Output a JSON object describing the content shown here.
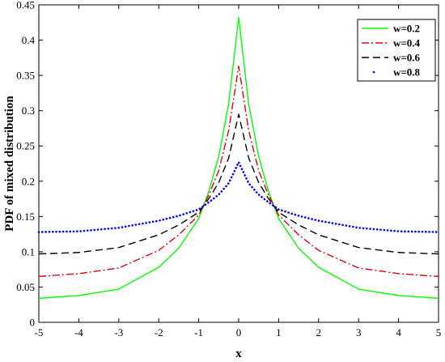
{
  "chart_data": {
    "type": "line",
    "xlabel": "x",
    "ylabel": "PDF of mixed distribution",
    "xlim": [
      -5,
      5
    ],
    "ylim": [
      0,
      0.45
    ],
    "x_ticks": [
      -5,
      -4,
      -3,
      -2,
      -1,
      0,
      1,
      2,
      3,
      4,
      5
    ],
    "y_ticks": [
      0,
      0.05,
      0.1,
      0.15,
      0.2,
      0.25,
      0.3,
      0.35,
      0.4,
      0.45
    ],
    "x_tick_labels": [
      "-5",
      "-4",
      "-3",
      "-2",
      "-1",
      "0",
      "1",
      "2",
      "3",
      "4",
      "5"
    ],
    "y_tick_labels": [
      "0",
      "0.05",
      "0.1",
      "0.15",
      "0.2",
      "0.25",
      "0.3",
      "0.35",
      "0.4",
      "0.45"
    ],
    "grid": false,
    "legend_position": "top-right",
    "x": [
      -5,
      -4,
      -3,
      -2,
      -1.5,
      -1,
      -0.75,
      -0.5,
      -0.25,
      0,
      0.25,
      0.5,
      0.75,
      1,
      1.5,
      2,
      3,
      4,
      5
    ],
    "series": [
      {
        "name": "w=0.2",
        "color": "#00ff00",
        "style": "solid",
        "values": [
          0.034,
          0.038,
          0.047,
          0.078,
          0.105,
          0.147,
          0.185,
          0.235,
          0.31,
          0.432,
          0.31,
          0.235,
          0.185,
          0.147,
          0.105,
          0.078,
          0.047,
          0.038,
          0.034
        ]
      },
      {
        "name": "w=0.4",
        "color": "#e0000f",
        "style": "dashdot",
        "values": [
          0.065,
          0.069,
          0.077,
          0.102,
          0.124,
          0.152,
          0.18,
          0.215,
          0.272,
          0.363,
          0.272,
          0.215,
          0.18,
          0.152,
          0.124,
          0.102,
          0.077,
          0.069,
          0.065
        ]
      },
      {
        "name": "w=0.6",
        "color": "#000000",
        "style": "dashed",
        "values": [
          0.097,
          0.099,
          0.106,
          0.124,
          0.138,
          0.156,
          0.175,
          0.198,
          0.233,
          0.295,
          0.233,
          0.198,
          0.175,
          0.156,
          0.138,
          0.124,
          0.106,
          0.099,
          0.097
        ]
      },
      {
        "name": "w=0.8",
        "color": "#0000ff",
        "style": "dotted",
        "values": [
          0.128,
          0.129,
          0.134,
          0.144,
          0.151,
          0.16,
          0.17,
          0.181,
          0.197,
          0.227,
          0.197,
          0.181,
          0.17,
          0.16,
          0.151,
          0.144,
          0.134,
          0.129,
          0.128
        ]
      }
    ]
  }
}
